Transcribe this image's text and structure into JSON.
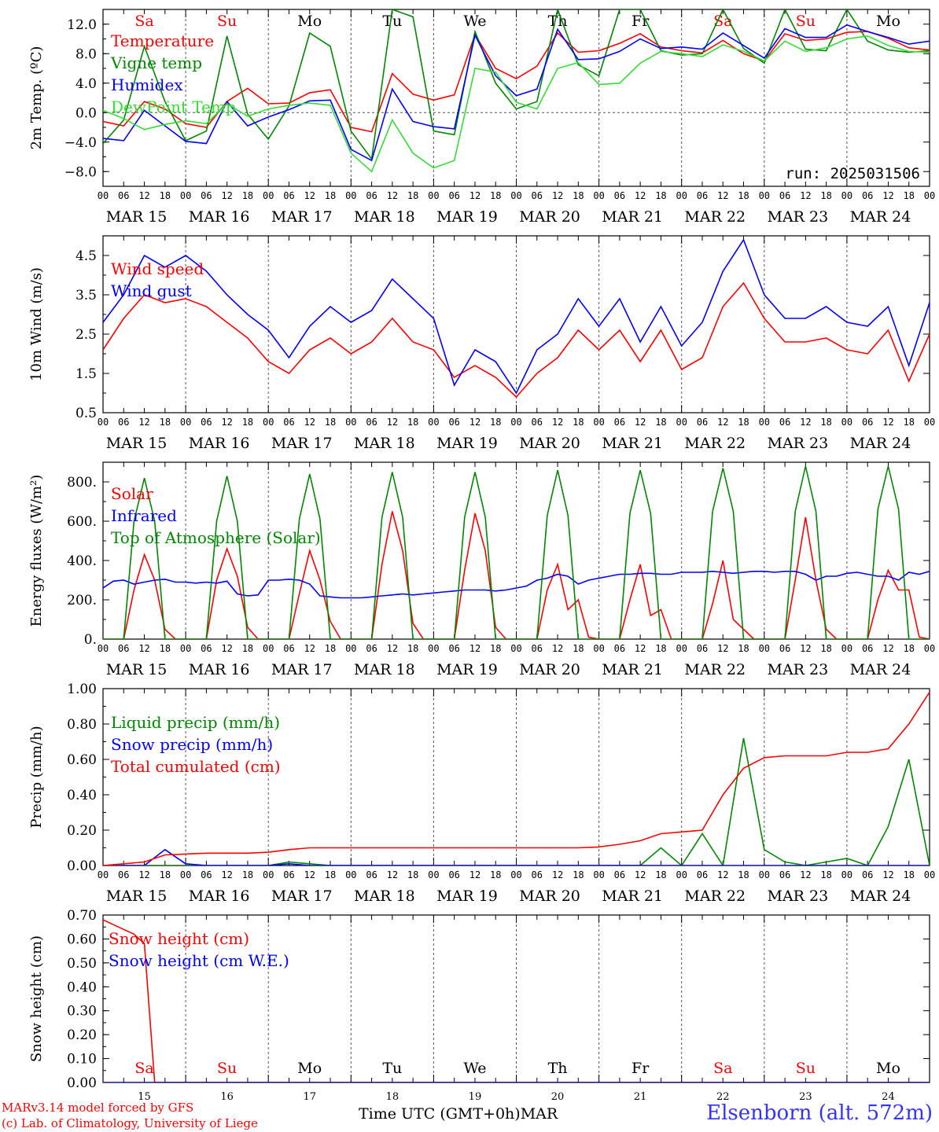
{
  "meta": {
    "run": "run: 2025031506",
    "footer_model": "MARv3.14 model forced by GFS",
    "footer_lab": "(c) Lab. of Climatology, University of Liege",
    "station": "Elsenborn (alt. 572m)",
    "xaxis_label": "Time UTC (GMT+0h)",
    "month": "MAR"
  },
  "colors": {
    "red": "#ff0000",
    "blue": "#0000ff",
    "green": "#008800",
    "lightgreen": "#33dd33",
    "grid": "#555555"
  },
  "hour_ticks": [
    "00",
    "06",
    "12",
    "18"
  ],
  "day_labels": [
    "MAR 15",
    "MAR 16",
    "MAR 17",
    "MAR 18",
    "MAR 19",
    "MAR 20",
    "MAR 21",
    "MAR 22",
    "MAR 23",
    "MAR 24"
  ],
  "weekdays": [
    {
      "d": "Sa",
      "weekend": true
    },
    {
      "d": "Su",
      "weekend": true
    },
    {
      "d": "Mo",
      "weekend": false
    },
    {
      "d": "Tu",
      "weekend": false
    },
    {
      "d": "We",
      "weekend": false
    },
    {
      "d": "Th",
      "weekend": false
    },
    {
      "d": "Fr",
      "weekend": false
    },
    {
      "d": "Sa",
      "weekend": true
    },
    {
      "d": "Su",
      "weekend": true
    },
    {
      "d": "Mo",
      "weekend": false
    }
  ],
  "bottom_days": [
    "15",
    "16",
    "17",
    "18",
    "19",
    "20",
    "21",
    "22",
    "23",
    "24"
  ],
  "chart_data": [
    {
      "type": "line",
      "ylabel": "2m Temp. (ºC)",
      "ylim": [
        -10,
        14
      ],
      "yticks": [
        -8,
        -4,
        0,
        4,
        8,
        12
      ],
      "ytick_labels": [
        "−8.0",
        "−4.0",
        "0.0",
        "4.0",
        "8.0",
        "12.0"
      ],
      "zero_line": true,
      "weekday_row": true,
      "x": [
        0,
        6,
        12,
        18,
        24,
        30,
        36,
        42,
        48,
        54,
        60,
        66,
        72,
        78,
        84,
        90,
        96,
        102,
        108,
        114,
        120,
        126,
        132,
        138,
        144,
        150,
        156,
        162,
        168,
        174,
        180,
        186,
        192,
        198,
        204,
        210,
        216,
        222,
        228,
        234,
        240
      ],
      "series": [
        {
          "name": "Temperature",
          "color": "red",
          "values": [
            -1.2,
            -1.8,
            1.5,
            0.5,
            -1.5,
            -2,
            1.5,
            3.3,
            1.2,
            1.3,
            2.7,
            3.1,
            -2.0,
            -2.6,
            5.3,
            2.5,
            1.7,
            2.4,
            10.6,
            6.0,
            4.6,
            6.3,
            10.8,
            8.2,
            8.4,
            9.4,
            10.7,
            8.9,
            8.4,
            8.1,
            9.8,
            8.0,
            7.0,
            10.7,
            9.8,
            10.0,
            10.9,
            11.0,
            10.1,
            8.8,
            8.5
          ]
        },
        {
          "name": "Vigne temp",
          "color": "green",
          "values": [
            -4.2,
            -1.0,
            9.0,
            1.5,
            -3.8,
            -2.5,
            10.4,
            -0.2,
            -3.6,
            0.9,
            10.8,
            9.0,
            -2.5,
            -6.3,
            14,
            13,
            -2.5,
            -3.0,
            11.0,
            4.0,
            0.5,
            1.5,
            14,
            6.5,
            5.0,
            14,
            14,
            8.4,
            7.8,
            8.0,
            14,
            8.7,
            6.7,
            14,
            8.6,
            8.4,
            14,
            9.7,
            8.5,
            8.2,
            8.4
          ]
        },
        {
          "name": "Humidex",
          "color": "blue",
          "values": [
            -3.5,
            -3.8,
            0.3,
            -1.8,
            -3.9,
            -4.2,
            1.5,
            -1.8,
            -0.6,
            0.4,
            1.6,
            1.7,
            -5.0,
            -6.5,
            3.2,
            -1.2,
            -1.9,
            -2.2,
            10.5,
            5.0,
            2.3,
            3.2,
            11.3,
            7.2,
            7.3,
            8.3,
            10.0,
            8.7,
            8.9,
            8.6,
            10.8,
            9.1,
            7.4,
            11.4,
            10.2,
            10.2,
            11.9,
            11.0,
            10.2,
            9.3,
            9.7
          ]
        },
        {
          "name": "DewPoint Temp",
          "color": "lightgreen",
          "values": [
            0.3,
            -0.8,
            -2.3,
            -1.6,
            -1.1,
            -1.5,
            1.2,
            -0.5,
            0.5,
            1.0,
            1.3,
            1.0,
            -5.5,
            -8.0,
            -1.0,
            -5.5,
            -7.5,
            -6.5,
            6.0,
            5.5,
            1.4,
            0.5,
            6.0,
            6.8,
            3.8,
            4.0,
            6.7,
            8.3,
            8.0,
            7.6,
            9.2,
            8.3,
            7.0,
            9.7,
            8.3,
            8.8,
            10.0,
            10.4,
            9.1,
            8.3,
            8.2
          ]
        }
      ]
    },
    {
      "type": "line",
      "ylabel": "10m Wind (m/s)",
      "ylim": [
        0.5,
        5.0
      ],
      "yticks": [
        0.5,
        1.5,
        2.5,
        3.5,
        4.5
      ],
      "ytick_labels": [
        "0.5",
        "1.5",
        "2.5",
        "3.5",
        "4.5"
      ],
      "x": [
        0,
        6,
        12,
        18,
        24,
        30,
        36,
        42,
        48,
        54,
        60,
        66,
        72,
        78,
        84,
        90,
        96,
        102,
        108,
        114,
        120,
        126,
        132,
        138,
        144,
        150,
        156,
        162,
        168,
        174,
        180,
        186,
        192,
        198,
        204,
        210,
        216,
        222,
        228,
        234,
        240
      ],
      "series": [
        {
          "name": "Wind speed",
          "color": "red",
          "values": [
            2.1,
            2.9,
            3.5,
            3.3,
            3.4,
            3.2,
            2.8,
            2.4,
            1.8,
            1.5,
            2.1,
            2.4,
            2.0,
            2.3,
            2.9,
            2.3,
            2.1,
            1.4,
            1.7,
            1.4,
            0.9,
            1.5,
            1.9,
            2.6,
            2.1,
            2.6,
            1.8,
            2.6,
            1.6,
            1.9,
            3.2,
            3.8,
            2.9,
            2.3,
            2.3,
            2.4,
            2.1,
            2.0,
            2.6,
            1.3,
            2.5
          ]
        },
        {
          "name": "Wind gust",
          "color": "blue",
          "values": [
            2.8,
            3.5,
            4.5,
            4.2,
            4.5,
            4.1,
            3.5,
            3.0,
            2.6,
            1.9,
            2.7,
            3.2,
            2.8,
            3.1,
            3.9,
            3.4,
            2.9,
            1.2,
            2.1,
            1.8,
            1.0,
            2.1,
            2.5,
            3.4,
            2.7,
            3.4,
            2.3,
            3.2,
            2.2,
            2.8,
            4.1,
            4.9,
            3.5,
            2.9,
            2.9,
            3.2,
            2.8,
            2.7,
            3.2,
            1.7,
            3.3
          ]
        }
      ]
    },
    {
      "type": "line",
      "ylabel": "Energy fluxes (W/m²)",
      "ylim": [
        0,
        900
      ],
      "yticks": [
        0,
        200,
        400,
        600,
        800
      ],
      "ytick_labels": [
        "0.",
        "200.",
        "400.",
        "600.",
        "800."
      ],
      "x": [
        0,
        3,
        6,
        9,
        12,
        15,
        18,
        21,
        24,
        27,
        30,
        33,
        36,
        39,
        42,
        45,
        48,
        51,
        54,
        57,
        60,
        63,
        66,
        69,
        72,
        75,
        78,
        81,
        84,
        87,
        90,
        93,
        96,
        99,
        102,
        105,
        108,
        111,
        114,
        117,
        120,
        123,
        126,
        129,
        132,
        135,
        138,
        141,
        144,
        147,
        150,
        153,
        156,
        159,
        162,
        165,
        168,
        171,
        174,
        177,
        180,
        183,
        186,
        189,
        192,
        195,
        198,
        201,
        204,
        207,
        210,
        213,
        216,
        219,
        222,
        225,
        228,
        231,
        234,
        237,
        240
      ],
      "series": [
        {
          "name": "Solar",
          "color": "red",
          "values": [
            0,
            0,
            0,
            250,
            430,
            300,
            50,
            0,
            0,
            0,
            0,
            300,
            460,
            320,
            60,
            0,
            0,
            0,
            0,
            230,
            450,
            300,
            90,
            0,
            0,
            0,
            0,
            380,
            650,
            450,
            80,
            0,
            0,
            0,
            0,
            350,
            640,
            450,
            60,
            0,
            0,
            0,
            0,
            250,
            380,
            150,
            200,
            10,
            0,
            0,
            0,
            200,
            380,
            120,
            150,
            0,
            0,
            0,
            0,
            180,
            400,
            100,
            50,
            0,
            0,
            0,
            0,
            300,
            620,
            300,
            50,
            0,
            0,
            0,
            0,
            200,
            350,
            250,
            250,
            10,
            0
          ]
        },
        {
          "name": "Infrared",
          "color": "blue",
          "values": [
            260,
            295,
            300,
            280,
            290,
            300,
            305,
            290,
            290,
            285,
            290,
            285,
            295,
            230,
            220,
            225,
            300,
            300,
            305,
            300,
            280,
            220,
            215,
            210,
            210,
            210,
            215,
            220,
            225,
            230,
            225,
            230,
            235,
            240,
            245,
            250,
            250,
            250,
            245,
            250,
            260,
            270,
            300,
            310,
            330,
            320,
            280,
            300,
            310,
            320,
            330,
            330,
            335,
            335,
            330,
            330,
            340,
            340,
            340,
            345,
            340,
            335,
            340,
            345,
            345,
            340,
            345,
            345,
            330,
            300,
            320,
            320,
            335,
            340,
            330,
            320,
            320,
            300,
            340,
            330,
            345
          ]
        },
        {
          "name": "Top of Atmosphere (Solar)",
          "color": "green",
          "values": [
            0,
            0,
            0,
            600,
            820,
            600,
            0,
            0,
            0,
            0,
            0,
            600,
            830,
            600,
            0,
            0,
            0,
            0,
            0,
            610,
            840,
            610,
            0,
            0,
            0,
            0,
            0,
            620,
            850,
            620,
            0,
            0,
            0,
            0,
            0,
            620,
            850,
            620,
            0,
            0,
            0,
            0,
            0,
            630,
            860,
            630,
            0,
            0,
            0,
            0,
            0,
            640,
            860,
            640,
            0,
            0,
            0,
            0,
            0,
            650,
            870,
            650,
            0,
            0,
            0,
            0,
            0,
            650,
            880,
            650,
            0,
            0,
            0,
            0,
            0,
            660,
            880,
            660,
            0,
            0,
            0
          ]
        }
      ]
    },
    {
      "type": "line",
      "ylabel": "Precip (mm/h)",
      "ylim": [
        0,
        1.0
      ],
      "yticks": [
        0,
        0.2,
        0.4,
        0.6,
        0.8,
        1.0
      ],
      "ytick_labels": [
        "0.00",
        "0.20",
        "0.40",
        "0.60",
        "0.80",
        "1.00"
      ],
      "x": [
        0,
        6,
        12,
        18,
        24,
        30,
        36,
        42,
        48,
        54,
        60,
        66,
        72,
        78,
        84,
        90,
        96,
        102,
        108,
        114,
        120,
        126,
        132,
        138,
        144,
        150,
        156,
        162,
        168,
        174,
        180,
        186,
        192,
        198,
        204,
        210,
        216,
        222,
        228,
        234,
        240
      ],
      "series": [
        {
          "name": "Liquid precip (mm/h)",
          "color": "green",
          "values": [
            0,
            0,
            0,
            0,
            0,
            0,
            0,
            0,
            0,
            0.02,
            0.01,
            0,
            0,
            0,
            0,
            0,
            0,
            0,
            0,
            0,
            0,
            0,
            0,
            0,
            0,
            0,
            0,
            0.1,
            0,
            0.18,
            0,
            0.72,
            0.09,
            0.02,
            0,
            0.02,
            0.04,
            0,
            0.22,
            0.6,
            0
          ]
        },
        {
          "name": "Snow precip (mm/h)",
          "color": "blue",
          "values": [
            0,
            0,
            0,
            0.09,
            0.01,
            0,
            0,
            0,
            0,
            0.01,
            0,
            0,
            0,
            0,
            0,
            0,
            0,
            0,
            0,
            0,
            0,
            0,
            0,
            0,
            0,
            0,
            0,
            0,
            0,
            0,
            0,
            0,
            0,
            0,
            0,
            0,
            0,
            0,
            0,
            0,
            0
          ]
        },
        {
          "name": "Total cumulated (cm)",
          "color": "red",
          "values": [
            0,
            0.01,
            0.02,
            0.06,
            0.065,
            0.07,
            0.07,
            0.07,
            0.075,
            0.09,
            0.1,
            0.1,
            0.1,
            0.1,
            0.1,
            0.1,
            0.1,
            0.1,
            0.1,
            0.1,
            0.1,
            0.1,
            0.1,
            0.1,
            0.105,
            0.12,
            0.14,
            0.18,
            0.19,
            0.2,
            0.4,
            0.55,
            0.61,
            0.62,
            0.62,
            0.62,
            0.64,
            0.64,
            0.66,
            0.8,
            0.98
          ]
        }
      ]
    },
    {
      "type": "line",
      "ylabel": "Snow height (cm)",
      "ylim": [
        0,
        0.7
      ],
      "yticks": [
        0,
        0.1,
        0.2,
        0.3,
        0.4,
        0.5,
        0.6,
        0.7
      ],
      "ytick_labels": [
        "0.00",
        "0.10",
        "0.20",
        "0.30",
        "0.40",
        "0.50",
        "0.60",
        "0.70"
      ],
      "weekday_row_bottom": true,
      "x": [
        0,
        3,
        6,
        9,
        12,
        15,
        18,
        24,
        240
      ],
      "series": [
        {
          "name": "Snow height (cm)",
          "color": "red",
          "values": [
            0.68,
            0.66,
            0.64,
            0.62,
            0.58,
            0.0,
            0.0,
            0.0,
            0.0
          ]
        },
        {
          "name": "Snow height (cm W.E.)",
          "color": "blue",
          "values": [
            0,
            0,
            0,
            0,
            0,
            0,
            0,
            0,
            0
          ]
        }
      ]
    }
  ]
}
